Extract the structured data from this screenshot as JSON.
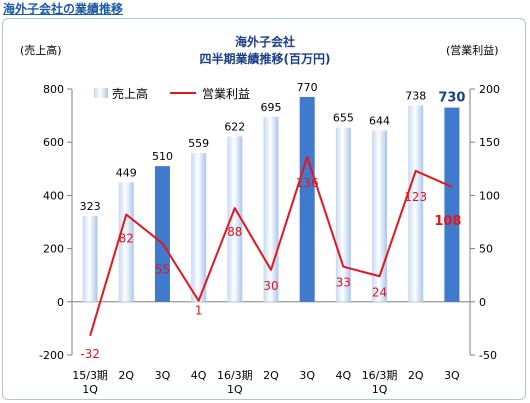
{
  "page": {
    "heading": "海外子会社の業績推移"
  },
  "chart_data": {
    "type": "bar",
    "title": "海外子会社",
    "subtitle": "四半期業績推移(百万円)",
    "ylabel_left": "(売上高)",
    "ylabel_right": "(営業利益)",
    "categories": [
      [
        "15/3期",
        "1Q"
      ],
      [
        "2Q"
      ],
      [
        "3Q"
      ],
      [
        "4Q"
      ],
      [
        "16/3期",
        "1Q"
      ],
      [
        "2Q"
      ],
      [
        "3Q"
      ],
      [
        "4Q"
      ],
      [
        "16/3期",
        "1Q"
      ],
      [
        "2Q"
      ],
      [
        "3Q"
      ]
    ],
    "ylim_left": [
      -200,
      800
    ],
    "yticks_left": [
      -200,
      0,
      200,
      400,
      600,
      800
    ],
    "ylim_right": [
      -50,
      200
    ],
    "yticks_right": [
      -50,
      0,
      50,
      100,
      150,
      200
    ],
    "series": [
      {
        "name": "売上高",
        "kind": "bar",
        "axis": "left",
        "values": [
          323,
          449,
          510,
          559,
          622,
          695,
          770,
          655,
          644,
          738,
          730
        ],
        "highlighted_indices": [
          2,
          6,
          10
        ],
        "color": "#5b8fd6",
        "highlight_color": "#3f7acc"
      },
      {
        "name": "営業利益",
        "kind": "line",
        "axis": "right",
        "values": [
          -32,
          82,
          55,
          1,
          88,
          30,
          136,
          33,
          24,
          123,
          108
        ],
        "color": "#e8141c"
      }
    ],
    "legend_position": "top-left",
    "grid": false
  }
}
